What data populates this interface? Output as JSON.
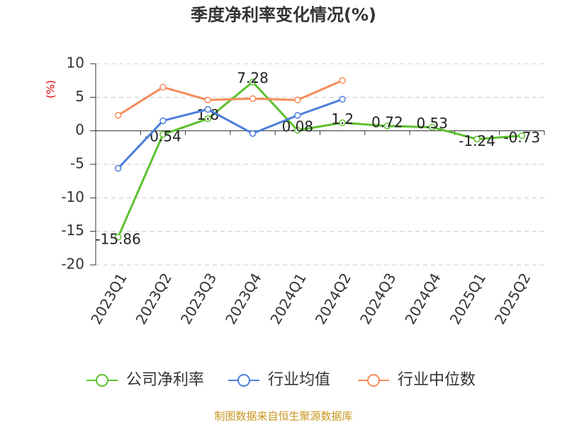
{
  "chart_data": {
    "type": "line",
    "title": "季度净利率变化情况(%)",
    "y_label": "(%)",
    "categories": [
      "2023Q1",
      "2023Q2",
      "2023Q3",
      "2023Q4",
      "2024Q1",
      "2024Q2",
      "2024Q3",
      "2024Q4",
      "2025Q1",
      "2025Q2"
    ],
    "series": [
      {
        "name": "公司净利率",
        "color": "#5cc12e",
        "values": [
          -15.86,
          -0.54,
          1.8,
          7.28,
          0.08,
          1.2,
          0.72,
          0.53,
          -1.24,
          -0.73
        ],
        "data_labels": true
      },
      {
        "name": "行业均值",
        "color": "#4e7fdc",
        "values": [
          -5.6,
          1.5,
          3.2,
          -0.4,
          2.3,
          4.7,
          null,
          null,
          null,
          null
        ]
      },
      {
        "name": "行业中位数",
        "color": "#f68c5a",
        "values": [
          2.3,
          6.5,
          4.6,
          4.8,
          4.6,
          7.5,
          null,
          null,
          null,
          null
        ]
      }
    ],
    "ylim": [
      -20,
      10
    ],
    "yticks": [
      -20,
      -15,
      -10,
      -5,
      0,
      5,
      10
    ],
    "grid": true,
    "source": "制图数据来自恒生聚源数据库"
  }
}
